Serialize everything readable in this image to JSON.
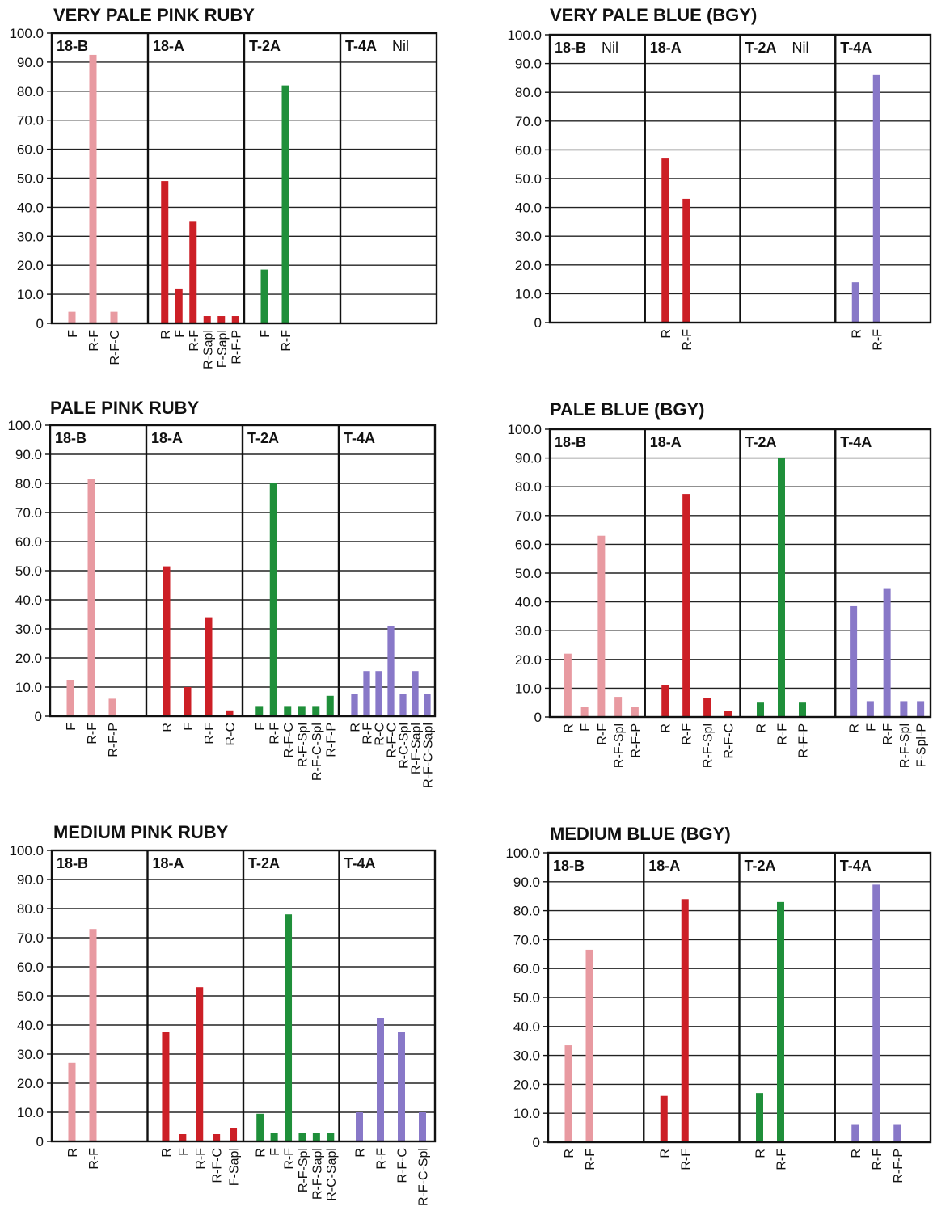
{
  "colors": {
    "18-B": "#e89aa1",
    "18-A": "#cc1f26",
    "T-2A": "#1f8f3a",
    "T-4A": "#8878c8"
  },
  "y_ticks": [
    "100.0",
    "90.0",
    "80.0",
    "70.0",
    "60.0",
    "50.0",
    "40.0",
    "30.0",
    "20.0",
    "10.0",
    "0"
  ],
  "chart_data": [
    {
      "type": "bar",
      "title": "VERY PALE PINK RUBY",
      "ylim": [
        0,
        100
      ],
      "groups": [
        {
          "name": "18-B",
          "note": "",
          "categories": [
            "F",
            "R-F",
            "R-F-C"
          ],
          "values": [
            4,
            92.5,
            4
          ]
        },
        {
          "name": "18-A",
          "note": "",
          "categories": [
            "R",
            "F",
            "R-F",
            "R-Sapl",
            "F-Sapl",
            "R-F-P"
          ],
          "values": [
            49,
            12,
            35,
            2.5,
            2.5,
            2.5
          ]
        },
        {
          "name": "T-2A",
          "note": "",
          "categories": [
            "F",
            "R-F"
          ],
          "values": [
            18.5,
            82
          ]
        },
        {
          "name": "T-4A",
          "note": "Nil",
          "categories": [],
          "values": []
        }
      ]
    },
    {
      "type": "bar",
      "title": "VERY PALE BLUE (BGY)",
      "ylim": [
        0,
        100
      ],
      "groups": [
        {
          "name": "18-B",
          "note": "Nil",
          "categories": [],
          "values": []
        },
        {
          "name": "18-A",
          "note": "",
          "categories": [
            "R",
            "R-F"
          ],
          "values": [
            57,
            43
          ]
        },
        {
          "name": "T-2A",
          "note": "Nil",
          "categories": [],
          "values": []
        },
        {
          "name": "T-4A",
          "note": "",
          "categories": [
            "R",
            "R-F"
          ],
          "values": [
            14,
            86
          ]
        }
      ]
    },
    {
      "type": "bar",
      "title": "PALE PINK RUBY",
      "ylim": [
        0,
        100
      ],
      "groups": [
        {
          "name": "18-B",
          "note": "",
          "categories": [
            "F",
            "R-F",
            "R-F-P"
          ],
          "values": [
            12.5,
            81.5,
            6
          ]
        },
        {
          "name": "18-A",
          "note": "",
          "categories": [
            "R",
            "F",
            "R-F",
            "R-C"
          ],
          "values": [
            51.5,
            10,
            34,
            2
          ]
        },
        {
          "name": "T-2A",
          "note": "",
          "categories": [
            "F",
            "R-F",
            "R-F-C",
            "R-F-Spl",
            "R-F-C-Spl",
            "R-F-P"
          ],
          "values": [
            3.5,
            80,
            3.5,
            3.5,
            3.5,
            7
          ]
        },
        {
          "name": "T-4A",
          "note": "",
          "categories": [
            "R",
            "R-F",
            "R-C",
            "R-F-C",
            "R-C-Spl",
            "R-F-Sapl",
            "R-F-C-Sapl"
          ],
          "values": [
            7.5,
            15.5,
            15.5,
            31,
            7.5,
            15.5,
            7.5
          ]
        }
      ]
    },
    {
      "type": "bar",
      "title": "PALE BLUE (BGY)",
      "ylim": [
        0,
        100
      ],
      "groups": [
        {
          "name": "18-B",
          "note": "",
          "categories": [
            "R",
            "F",
            "R-F",
            "R-F-Spl",
            "R-F-P"
          ],
          "values": [
            22,
            3.5,
            63,
            7,
            3.5
          ]
        },
        {
          "name": "18-A",
          "note": "",
          "categories": [
            "R",
            "R-F",
            "R-F-Spl",
            "R-F-C"
          ],
          "values": [
            11,
            77.5,
            6.5,
            2
          ]
        },
        {
          "name": "T-2A",
          "note": "",
          "categories": [
            "R",
            "R-F",
            "R-F-P"
          ],
          "values": [
            5,
            90,
            5
          ]
        },
        {
          "name": "T-4A",
          "note": "",
          "categories": [
            "R",
            "F",
            "R-F",
            "R-F-Spl",
            "F-Spl-P"
          ],
          "values": [
            38.5,
            5.5,
            44.5,
            5.5,
            5.5
          ]
        }
      ]
    },
    {
      "type": "bar",
      "title": "MEDIUM PINK RUBY",
      "ylim": [
        0,
        100
      ],
      "groups": [
        {
          "name": "18-B",
          "note": "",
          "categories": [
            "R",
            "R-F"
          ],
          "values": [
            27,
            73
          ]
        },
        {
          "name": "18-A",
          "note": "",
          "categories": [
            "R",
            "F",
            "R-F",
            "R-F-C",
            "F-Sapl"
          ],
          "values": [
            37.5,
            2.5,
            53,
            2.5,
            4.5
          ]
        },
        {
          "name": "T-2A",
          "note": "",
          "categories": [
            "R",
            "F",
            "R-F",
            "R-F-Spl",
            "R-F-Sapl",
            "R-C-Sapl"
          ],
          "values": [
            9.5,
            3,
            78,
            3,
            3,
            3
          ]
        },
        {
          "name": "T-4A",
          "note": "",
          "categories": [
            "R",
            "R-F",
            "R-F-C",
            "R-F-C-Spl"
          ],
          "values": [
            10,
            42.5,
            37.5,
            10
          ]
        }
      ]
    },
    {
      "type": "bar",
      "title": "MEDIUM BLUE (BGY)",
      "ylim": [
        0,
        100
      ],
      "groups": [
        {
          "name": "18-B",
          "note": "",
          "categories": [
            "R",
            "R-F"
          ],
          "values": [
            33.5,
            66.5
          ]
        },
        {
          "name": "18-A",
          "note": "",
          "categories": [
            "R",
            "R-F"
          ],
          "values": [
            16,
            84
          ]
        },
        {
          "name": "T-2A",
          "note": "",
          "categories": [
            "R",
            "R-F"
          ],
          "values": [
            17,
            83
          ]
        },
        {
          "name": "T-4A",
          "note": "",
          "categories": [
            "R",
            "R-F",
            "R-F-P"
          ],
          "values": [
            6,
            89,
            6
          ]
        }
      ]
    }
  ]
}
